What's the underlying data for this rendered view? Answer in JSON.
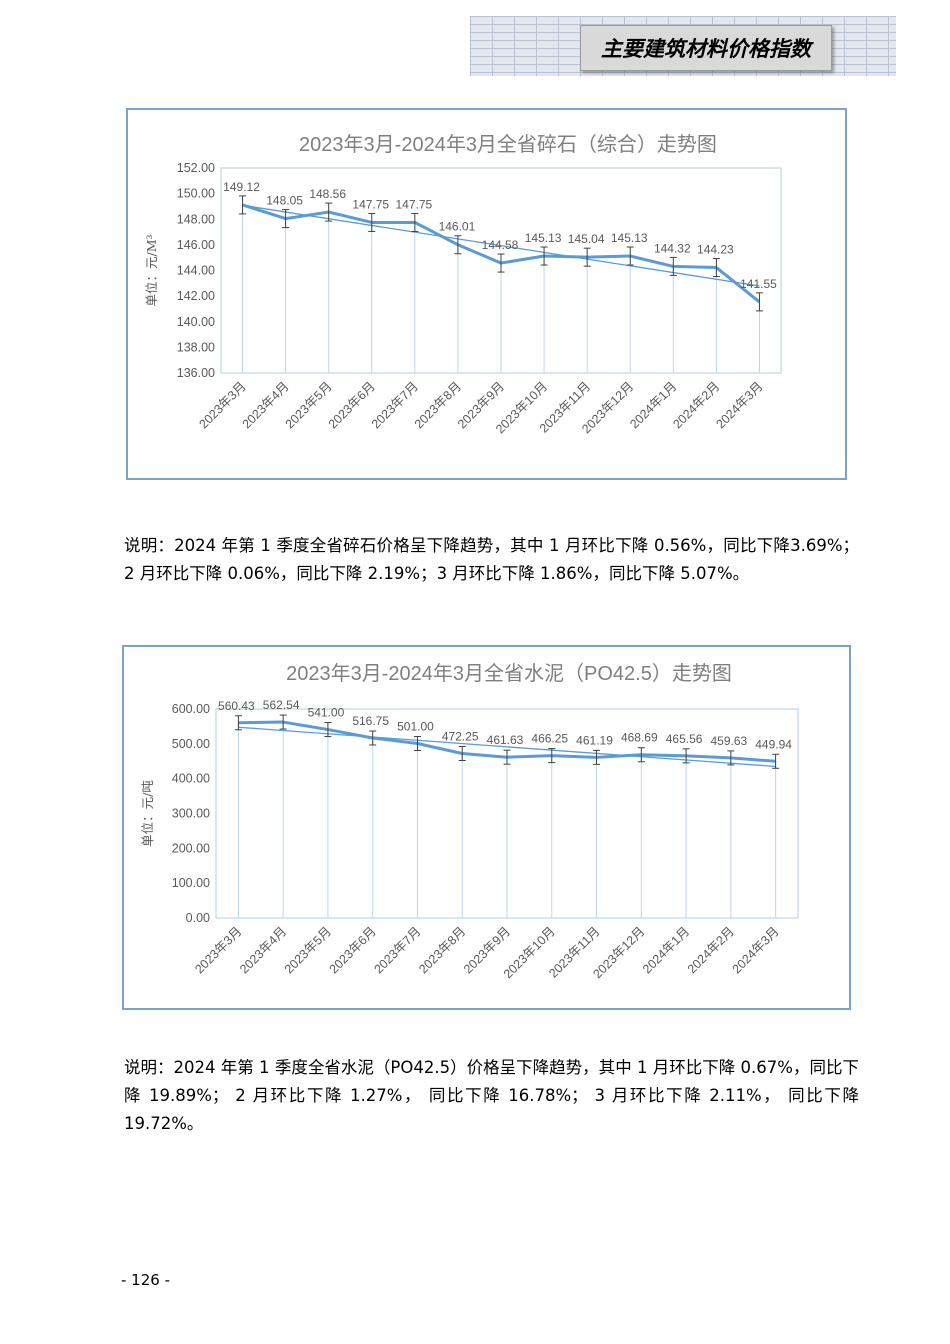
{
  "header": {
    "title": "主要建筑材料价格指数"
  },
  "chart_data": [
    {
      "type": "line",
      "title": "2023年3月-2024年3月全省碎石（综合）走势图",
      "xlabel": "",
      "ylabel": "单位：元/M³",
      "categories": [
        "2023年3月",
        "2023年4月",
        "2023年5月",
        "2023年6月",
        "2023年7月",
        "2023年8月",
        "2023年9月",
        "2023年10月",
        "2023年11月",
        "2023年12月",
        "2024年1月",
        "2024年2月",
        "2024年3月"
      ],
      "values": [
        149.12,
        148.05,
        148.56,
        147.75,
        147.75,
        146.01,
        144.58,
        145.13,
        145.04,
        145.13,
        144.32,
        144.23,
        141.55
      ],
      "value_labels": [
        "149.12",
        "148.05",
        "148.56",
        "147.75",
        "147.75",
        "146.01",
        "144.58",
        "145.13",
        "145.04",
        "145.13",
        "144.32",
        "144.23",
        "141.55"
      ],
      "ylim": [
        136,
        152
      ],
      "yticks": [
        "136.00",
        "138.00",
        "140.00",
        "142.00",
        "144.00",
        "146.00",
        "148.00",
        "150.00",
        "152.00"
      ],
      "error_bars": true,
      "trendline": true,
      "grid": "vertical",
      "colors": {
        "line": "#5b9bd5",
        "grid": "#bdd7ee",
        "title": "#7f7f7f",
        "text": "#595959",
        "frame": "#7aa3cc"
      }
    },
    {
      "type": "line",
      "title": "2023年3月-2024年3月全省水泥（PO42.5）走势图",
      "xlabel": "",
      "ylabel": "单位：元/吨",
      "categories": [
        "2023年3月",
        "2023年4月",
        "2023年5月",
        "2023年6月",
        "2023年7月",
        "2023年8月",
        "2023年9月",
        "2023年10月",
        "2023年11月",
        "2023年12月",
        "2024年1月",
        "2024年2月",
        "2024年3月"
      ],
      "values": [
        560.43,
        562.54,
        541.0,
        516.75,
        501.0,
        472.25,
        461.63,
        466.25,
        461.19,
        468.69,
        465.56,
        459.63,
        449.94
      ],
      "value_labels": [
        "560.43",
        "562.54",
        "541.00",
        "516.75",
        "501.00",
        "472.25",
        "461.63",
        "466.25",
        "461.19",
        "468.69",
        "465.56",
        "459.63",
        "449.94"
      ],
      "ylim": [
        0,
        600
      ],
      "yticks": [
        "0.00",
        "100.00",
        "200.00",
        "300.00",
        "400.00",
        "500.00",
        "600.00"
      ],
      "error_bars": true,
      "trendline": true,
      "grid": "vertical",
      "colors": {
        "line": "#5b9bd5",
        "grid": "#bdd7ee",
        "title": "#7f7f7f",
        "text": "#595959",
        "frame": "#7aa3cc"
      }
    }
  ],
  "notes": [
    "说明：2024 年第 1 季度全省碎石价格呈下降趋势，其中 1 月环比下降 0.56%，同比下降3.69%；2 月环比下降 0.06%，同比下降 2.19%；3 月环比下降 1.86%，同比下降 5.07%。",
    "说明：2024 年第 1 季度全省水泥（PO42.5）价格呈下降趋势，其中 1 月环比下降 0.67%，同比下降 19.89%； 2 月环比下降 1.27%， 同比下降 16.78%； 3 月环比下降 2.11%， 同比下降 19.72%。"
  ],
  "footer": {
    "page_number": "- 126 -"
  }
}
